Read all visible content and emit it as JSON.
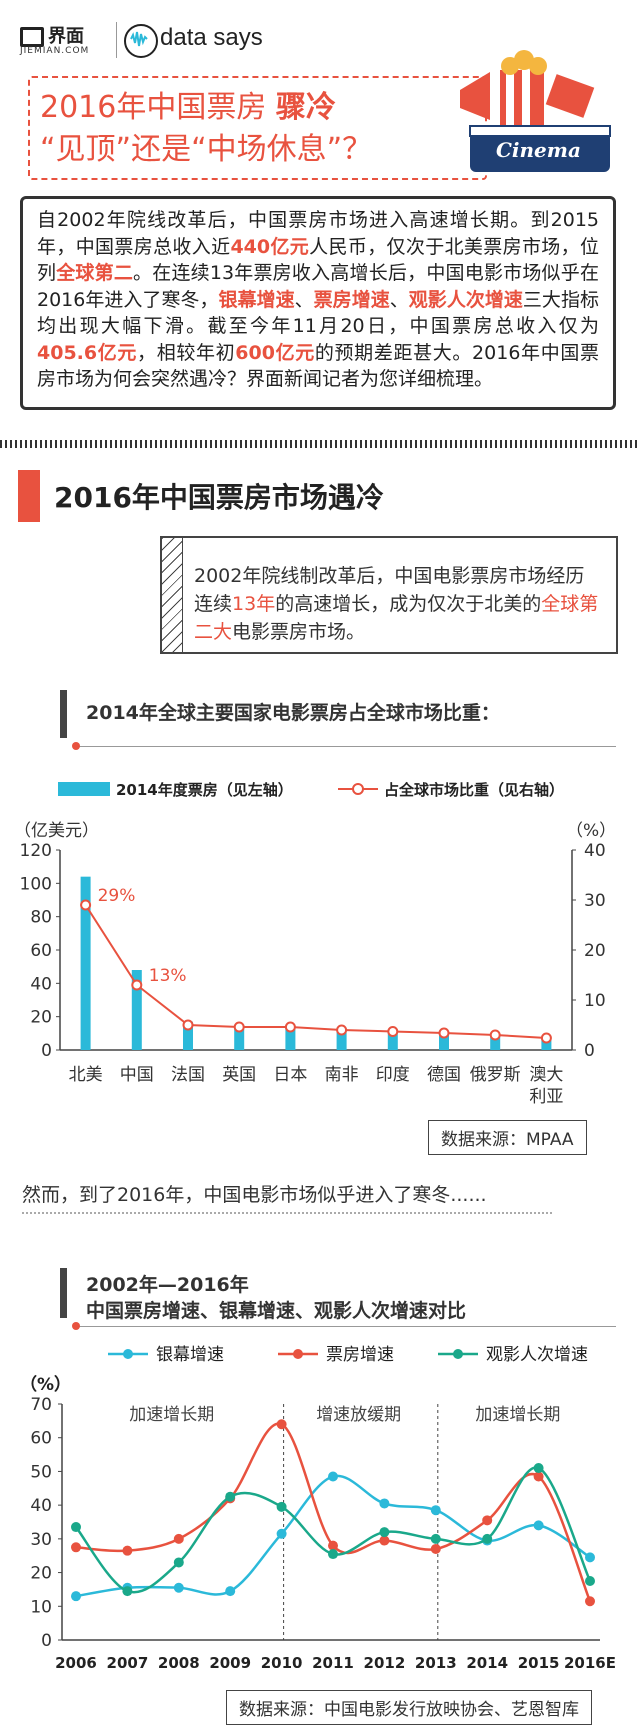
{
  "brand": {
    "logo": "界面",
    "logo_sub": "JIEMIAN.COM",
    "partner": "data says"
  },
  "title": {
    "line1_a": "2016年中国票房 ",
    "line1_b": "骤冷",
    "line2_a": "“见顶”还是“",
    "line2_b": "中场休息",
    "line2_c": "”？"
  },
  "cinema_label": "Cinema",
  "intro": {
    "p1": "自2002年院线改革后，中国票房市场进入高速增长期。到2015年，中国票房总收入近",
    "h1": "440亿元",
    "p2": "人民币，仅次于北美票房市场，位列",
    "h2": "全球第二",
    "p3": "。在连续13年票房收入高增长后，中国电影市场似乎在2016年进入了寒冬，",
    "h3": "银幕增速",
    "p4": "、",
    "h4": "票房增速",
    "p5": "、",
    "h5": "观影人次增速",
    "p6": "三大指标均出现大幅下滑。截至今年11月20日，中国票房总收入仅为",
    "h6": "405.6亿元",
    "p7": "，相较年初",
    "h7": "600亿元",
    "p8": "的预期差距甚大。2016年中国票房市场为何会突然遇冷？界面新闻记者为您详细梳理。"
  },
  "section": {
    "title": "2016年中国票房市场遇冷"
  },
  "note": {
    "p1": "2002年院线制改革后，中国电影票房市场经历连续",
    "h1": "13年",
    "p2": "的高速增长，成为仅次于北美的",
    "h2": "全球第二大",
    "p3": "电影票房市场。"
  },
  "chart1_title": "2014年全球主要国家电影票房占全球市场比重：",
  "chart1_source": "数据来源：MPAA",
  "transition": "然而，到了2016年，中国电影市场似乎进入了寒冬......",
  "chart2_title_1": "2002年—2016年",
  "chart2_title_2": "中国票房增速、银幕增速、观影人次增速对比",
  "chart2_source": "数据来源：中国电影发行放映协会、艺恩智库",
  "colors": {
    "accent": "#e8523f",
    "bar": "#2bb9d9",
    "teal": "#1aa88a",
    "dark": "#333333"
  },
  "chart_data": [
    {
      "type": "bar",
      "title": "2014年全球主要国家电影票房占全球市场比重：",
      "categories": [
        "北美",
        "中国",
        "法国",
        "英国",
        "日本",
        "南非",
        "印度",
        "德国",
        "俄罗斯",
        "澳大利亚"
      ],
      "category_labels": [
        [
          "北美"
        ],
        [
          "中国"
        ],
        [
          "法国"
        ],
        [
          "英国"
        ],
        [
          "日本"
        ],
        [
          "南非"
        ],
        [
          "印度"
        ],
        [
          "德国"
        ],
        [
          "俄罗斯"
        ],
        [
          "澳大",
          "利亚"
        ]
      ],
      "series": [
        {
          "name": "2014年度票房（见左轴）",
          "axis": "left",
          "kind": "bar",
          "values": [
            104,
            48,
            17,
            15,
            15,
            12,
            11,
            10,
            8,
            7
          ]
        },
        {
          "name": "占全球市场比重（见右轴）",
          "axis": "right",
          "kind": "line",
          "values": [
            29,
            13,
            5,
            4.6,
            4.6,
            4,
            3.7,
            3.4,
            3,
            2.4
          ]
        }
      ],
      "data_labels": [
        "29%",
        "13%"
      ],
      "ylabel_left": "（亿美元）",
      "ylabel_right": "（%）",
      "ylim_left": [
        0,
        120
      ],
      "ylim_right": [
        0,
        40
      ],
      "yticks_left": [
        0,
        20,
        40,
        60,
        80,
        100,
        120
      ],
      "yticks_right": [
        0,
        10,
        20,
        30,
        40
      ],
      "legend_position": "top"
    },
    {
      "type": "line",
      "title": "2002年—2016年 中国票房增速、银幕增速、观影人次增速对比",
      "x": [
        "2006",
        "2007",
        "2008",
        "2009",
        "2010",
        "2011",
        "2012",
        "2013",
        "2014",
        "2015",
        "2016E"
      ],
      "series": [
        {
          "name": "银幕增速",
          "values": [
            13,
            15.5,
            15.5,
            14.5,
            31.5,
            48.5,
            40.5,
            38.5,
            29.5,
            34,
            24.5
          ]
        },
        {
          "name": "票房增速",
          "values": [
            27.5,
            26.5,
            30,
            42,
            64,
            28,
            29.5,
            27,
            35.5,
            48.5,
            11.5
          ]
        },
        {
          "name": "观影人次增速",
          "values": [
            33.5,
            14.5,
            23,
            42.5,
            39.5,
            25.5,
            32,
            30,
            30,
            51,
            17.5
          ]
        }
      ],
      "ylabel": "（%）",
      "ylim": [
        0,
        70
      ],
      "yticks": [
        0,
        10,
        20,
        30,
        40,
        50,
        60,
        70
      ],
      "periods": [
        "加速增长期",
        "增速放缓期",
        "加速增长期"
      ],
      "period_dividers_after": [
        "2010",
        "2013"
      ],
      "legend_position": "top"
    }
  ]
}
